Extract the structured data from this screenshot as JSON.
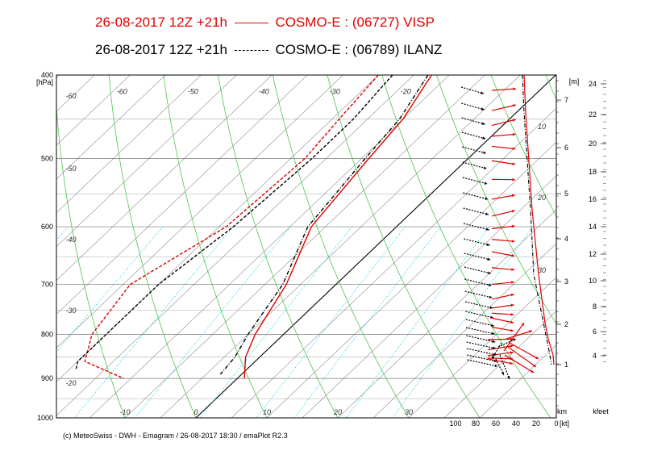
{
  "header": {
    "line1": "26-08-2017  12Z +21h",
    "line1_model": "COSMO-E : (06727)  VISP",
    "line2": "26-08-2017  12Z +21h",
    "line2_model": "COSMO-E : (06789)  ILANZ",
    "line1_color": "#e00000",
    "line2_color": "#000000"
  },
  "credit": "(c) MeteoSwiss - DWH - Emagram / 26-08-2017  18:30 / emaPlot R2.3",
  "chart_data": {
    "type": "line",
    "yaxis_unit": "[hPa]",
    "pressure_ticks": [
      "400",
      "500",
      "600",
      "700",
      "800",
      "900",
      "1000"
    ],
    "isotherm_labels": [
      "-60",
      "-50",
      "-40",
      "-30",
      "-20",
      "-10",
      "0",
      "10",
      "20",
      "30"
    ],
    "dry_adiabat_labels": [
      "-60",
      "-50",
      "-40",
      "-30",
      "-20"
    ],
    "wind_axis": {
      "ticks": [
        "100",
        "80",
        "60",
        "40",
        "20",
        "0"
      ],
      "unit": "[kt]"
    },
    "height_km_axis": {
      "unit": "[m]",
      "ticks": [
        "7",
        "6",
        "5",
        "4",
        "3",
        "2",
        "1"
      ],
      "footer": "km"
    },
    "height_kfeet_axis": {
      "ticks": [
        "24",
        "22",
        "20",
        "18",
        "16",
        "14",
        "12",
        "10",
        "8",
        "6",
        "4"
      ],
      "footer": "kfeet"
    },
    "wind_profile_labels": [
      "10",
      "20",
      "30"
    ],
    "series": [
      {
        "station": "VISP",
        "color": "#e00000",
        "style": "solid",
        "temperature": [
          [
            400,
            -17.5
          ],
          [
            450,
            -15
          ],
          [
            500,
            -14
          ],
          [
            600,
            -12
          ],
          [
            700,
            -7
          ],
          [
            800,
            -4
          ],
          [
            850,
            -2
          ],
          [
            900,
            1
          ]
        ],
        "dewpoint": [
          [
            400,
            -25
          ],
          [
            450,
            -24
          ],
          [
            500,
            -23
          ],
          [
            600,
            -24
          ],
          [
            700,
            -29
          ],
          [
            800,
            -27
          ],
          [
            860,
            -24
          ],
          [
            900,
            -16
          ]
        ]
      },
      {
        "station": "ILANZ",
        "color": "#000000",
        "style": "dashdot",
        "temperature": [
          [
            400,
            -18
          ],
          [
            450,
            -15.5
          ],
          [
            500,
            -14.5
          ],
          [
            600,
            -12.5
          ],
          [
            700,
            -7.5
          ],
          [
            800,
            -5
          ],
          [
            850,
            -3.5
          ],
          [
            890,
            -3
          ]
        ],
        "dewpoint": [
          [
            400,
            -23
          ],
          [
            450,
            -22
          ],
          [
            500,
            -22
          ],
          [
            600,
            -23
          ],
          [
            700,
            -25
          ],
          [
            800,
            -25
          ],
          [
            860,
            -25
          ],
          [
            880,
            -24
          ]
        ]
      }
    ]
  }
}
